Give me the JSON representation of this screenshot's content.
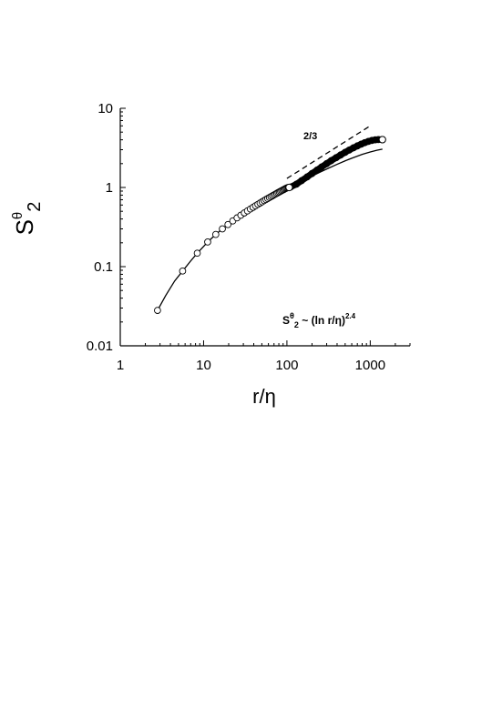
{
  "chart_data": {
    "type": "scatter",
    "x_scale": "log",
    "y_scale": "log",
    "xlim": [
      1,
      3000
    ],
    "ylim": [
      0.01,
      10
    ],
    "xlabel": {
      "base": "r/",
      "greek": "η"
    },
    "ylabel": {
      "base": "S",
      "sup": "θ",
      "sub": "2"
    },
    "x_ticks": [
      {
        "value": 1,
        "label": "1"
      },
      {
        "value": 10,
        "label": "10"
      },
      {
        "value": 100,
        "label": "100"
      },
      {
        "value": 1000,
        "label": "1000"
      }
    ],
    "y_ticks": [
      {
        "value": 0.01,
        "label": "0.01"
      },
      {
        "value": 0.1,
        "label": "0.1"
      },
      {
        "value": 1,
        "label": "1"
      },
      {
        "value": 10,
        "label": "10"
      }
    ],
    "grid": false,
    "legend": "none",
    "series": [
      {
        "kind": "open-circle-markers",
        "x": [
          2.8,
          5.6,
          8.4,
          11.2,
          14,
          16.8,
          19.6,
          22.4,
          25.2,
          28,
          30.8,
          33.6,
          36.4,
          39.2,
          42,
          44.8,
          47.6,
          50.4,
          53.2,
          56,
          58.8,
          61.6,
          64.4,
          67.2,
          70,
          72.8,
          75.6,
          78.4,
          81.2,
          84,
          86.8,
          89.6,
          92.4,
          95.2,
          98,
          100.8,
          103.6,
          106.4
        ],
        "y": [
          0.028,
          0.088,
          0.148,
          0.205,
          0.255,
          0.3,
          0.34,
          0.378,
          0.413,
          0.446,
          0.477,
          0.506,
          0.534,
          0.561,
          0.587,
          0.612,
          0.636,
          0.659,
          0.682,
          0.704,
          0.725,
          0.746,
          0.766,
          0.786,
          0.805,
          0.824,
          0.843,
          0.861,
          0.879,
          0.896,
          0.913,
          0.93,
          0.946,
          0.962,
          0.978,
          0.99,
          1.0,
          1.0
        ]
      },
      {
        "kind": "dense-filled-markers",
        "x": [
          110,
          130,
          150,
          175,
          200,
          230,
          260,
          300,
          340,
          390,
          440,
          500,
          560,
          630,
          700,
          780,
          860,
          950,
          1050,
          1150,
          1250,
          1400
        ],
        "y": [
          1.01,
          1.1,
          1.22,
          1.36,
          1.5,
          1.66,
          1.81,
          2.0,
          2.18,
          2.38,
          2.57,
          2.78,
          2.97,
          3.17,
          3.35,
          3.53,
          3.68,
          3.82,
          3.93,
          4.0,
          4.03,
          4.02
        ]
      },
      {
        "kind": "solid-line",
        "x": [
          2.8,
          3.5,
          4.5,
          5.6,
          7,
          8.4,
          10,
          11.2,
          14,
          16.8,
          19.6,
          25,
          30,
          40,
          50,
          60,
          70,
          80,
          100,
          120,
          150,
          200,
          250,
          300,
          400,
          500,
          600,
          800,
          1000,
          1200,
          1400
        ],
        "y": [
          0.028,
          0.043,
          0.066,
          0.088,
          0.118,
          0.148,
          0.18,
          0.205,
          0.255,
          0.3,
          0.34,
          0.41,
          0.465,
          0.56,
          0.64,
          0.71,
          0.775,
          0.835,
          0.95,
          1.05,
          1.19,
          1.39,
          1.56,
          1.71,
          1.96,
          2.17,
          2.34,
          2.62,
          2.81,
          2.95,
          3.05
        ]
      },
      {
        "kind": "dashed-line",
        "label": "2/3",
        "x": [
          100,
          1000
        ],
        "y": [
          1.3,
          6.0
        ]
      }
    ],
    "highlight_points": [
      {
        "x": 106.4,
        "y": 1.0
      },
      {
        "x": 1400,
        "y": 4.02
      }
    ],
    "annotations": {
      "slope_label": "2/3",
      "formula": {
        "s": "S",
        "sup_theta": "θ",
        "sub_2": "2",
        "mid": " ~ (ln r/",
        "eta": "η",
        "close": ")",
        "exponent": "2.4"
      }
    }
  }
}
